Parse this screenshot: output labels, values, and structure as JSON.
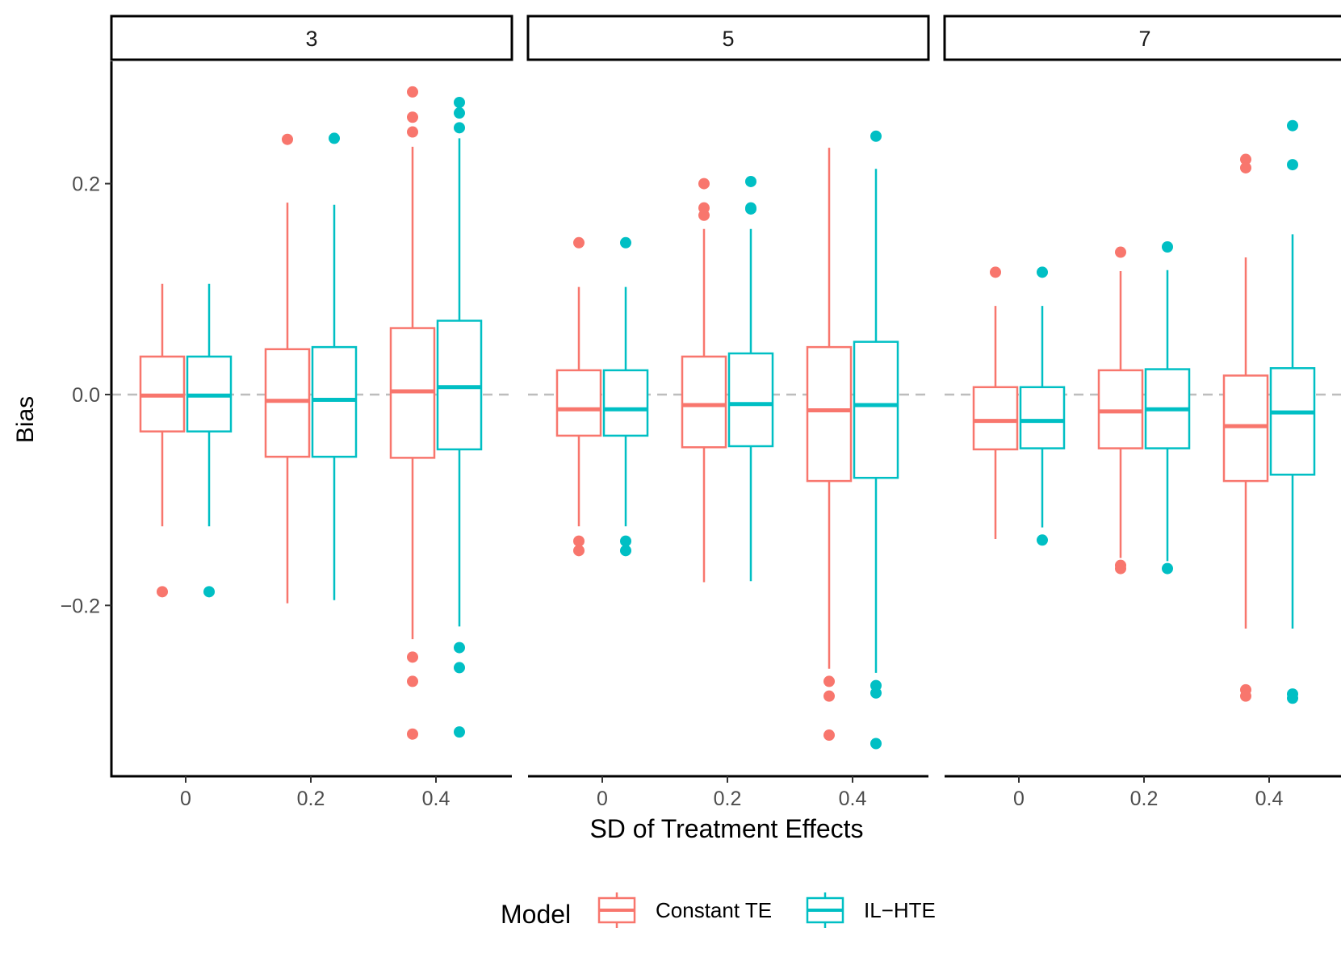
{
  "chart_data": {
    "type": "boxplot",
    "ylabel": "Bias",
    "xlabel": "SD of Treatment Effects",
    "ylim": [
      -0.362,
      0.316
    ],
    "y_ticks": [
      {
        "value": 0.2,
        "label": "0.2"
      },
      {
        "value": 0.0,
        "label": "0.0"
      },
      {
        "value": -0.2,
        "label": "−0.2"
      }
    ],
    "reference_line": 0,
    "categories": [
      "0",
      "0.2",
      "0.4"
    ],
    "legend": {
      "title": "Model",
      "position": "bottom",
      "entries": [
        {
          "name": "Constant TE",
          "color": "#F8766D"
        },
        {
          "name": "IL−HTE",
          "color": "#00BFC4"
        }
      ]
    },
    "panels": [
      {
        "label": "3",
        "groups": [
          {
            "category": "0",
            "series": [
              {
                "name": "Constant TE",
                "whisker_low": -0.125,
                "q1": -0.035,
                "median": -0.001,
                "q3": 0.036,
                "whisker_high": 0.105,
                "outliers": [
                  -0.187
                ]
              },
              {
                "name": "IL−HTE",
                "whisker_low": -0.125,
                "q1": -0.035,
                "median": -0.001,
                "q3": 0.036,
                "whisker_high": 0.105,
                "outliers": [
                  -0.187
                ]
              }
            ]
          },
          {
            "category": "0.2",
            "series": [
              {
                "name": "Constant TE",
                "whisker_low": -0.198,
                "q1": -0.059,
                "median": -0.006,
                "q3": 0.043,
                "whisker_high": 0.182,
                "outliers": [
                  0.242
                ]
              },
              {
                "name": "IL−HTE",
                "whisker_low": -0.195,
                "q1": -0.059,
                "median": -0.005,
                "q3": 0.045,
                "whisker_high": 0.18,
                "outliers": [
                  0.243
                ]
              }
            ]
          },
          {
            "category": "0.4",
            "series": [
              {
                "name": "Constant TE",
                "whisker_low": -0.232,
                "q1": -0.06,
                "median": 0.003,
                "q3": 0.063,
                "whisker_high": 0.235,
                "outliers": [
                  0.287,
                  0.263,
                  0.249,
                  -0.249,
                  -0.272,
                  -0.322
                ]
              },
              {
                "name": "IL−HTE",
                "whisker_low": -0.22,
                "q1": -0.052,
                "median": 0.007,
                "q3": 0.07,
                "whisker_high": 0.243,
                "outliers": [
                  0.277,
                  0.267,
                  0.253,
                  -0.24,
                  -0.259,
                  -0.32
                ]
              }
            ]
          }
        ]
      },
      {
        "label": "5",
        "groups": [
          {
            "category": "0",
            "series": [
              {
                "name": "Constant TE",
                "whisker_low": -0.125,
                "q1": -0.039,
                "median": -0.014,
                "q3": 0.023,
                "whisker_high": 0.102,
                "outliers": [
                  0.144,
                  -0.139,
                  -0.148
                ]
              },
              {
                "name": "IL−HTE",
                "whisker_low": -0.125,
                "q1": -0.039,
                "median": -0.014,
                "q3": 0.023,
                "whisker_high": 0.102,
                "outliers": [
                  0.144,
                  -0.139,
                  -0.148
                ]
              }
            ]
          },
          {
            "category": "0.2",
            "series": [
              {
                "name": "Constant TE",
                "whisker_low": -0.178,
                "q1": -0.05,
                "median": -0.01,
                "q3": 0.036,
                "whisker_high": 0.157,
                "outliers": [
                  0.2,
                  0.177,
                  0.17
                ]
              },
              {
                "name": "IL−HTE",
                "whisker_low": -0.177,
                "q1": -0.049,
                "median": -0.009,
                "q3": 0.039,
                "whisker_high": 0.157,
                "outliers": [
                  0.202,
                  0.177,
                  0.176
                ]
              }
            ]
          },
          {
            "category": "0.4",
            "series": [
              {
                "name": "Constant TE",
                "whisker_low": -0.26,
                "q1": -0.082,
                "median": -0.015,
                "q3": 0.045,
                "whisker_high": 0.234,
                "outliers": [
                  -0.272,
                  -0.286,
                  -0.323
                ]
              },
              {
                "name": "IL−HTE",
                "whisker_low": -0.264,
                "q1": -0.079,
                "median": -0.01,
                "q3": 0.05,
                "whisker_high": 0.214,
                "outliers": [
                  0.245,
                  -0.276,
                  -0.283,
                  -0.331
                ]
              }
            ]
          }
        ]
      },
      {
        "label": "7",
        "groups": [
          {
            "category": "0",
            "series": [
              {
                "name": "Constant TE",
                "whisker_low": -0.137,
                "q1": -0.052,
                "median": -0.025,
                "q3": 0.007,
                "whisker_high": 0.084,
                "outliers": [
                  0.116
                ]
              },
              {
                "name": "IL−HTE",
                "whisker_low": -0.126,
                "q1": -0.051,
                "median": -0.025,
                "q3": 0.007,
                "whisker_high": 0.084,
                "outliers": [
                  0.116,
                  -0.138
                ]
              }
            ]
          },
          {
            "category": "0.2",
            "series": [
              {
                "name": "Constant TE",
                "whisker_low": -0.155,
                "q1": -0.051,
                "median": -0.016,
                "q3": 0.023,
                "whisker_high": 0.117,
                "outliers": [
                  0.135,
                  -0.162,
                  -0.165
                ]
              },
              {
                "name": "IL−HTE",
                "whisker_low": -0.158,
                "q1": -0.051,
                "median": -0.014,
                "q3": 0.024,
                "whisker_high": 0.118,
                "outliers": [
                  0.14,
                  -0.165
                ]
              }
            ]
          },
          {
            "category": "0.4",
            "series": [
              {
                "name": "Constant TE",
                "whisker_low": -0.222,
                "q1": -0.082,
                "median": -0.03,
                "q3": 0.018,
                "whisker_high": 0.13,
                "outliers": [
                  0.223,
                  0.215,
                  -0.28,
                  -0.286
                ]
              },
              {
                "name": "IL−HTE",
                "whisker_low": -0.222,
                "q1": -0.076,
                "median": -0.017,
                "q3": 0.025,
                "whisker_high": 0.152,
                "outliers": [
                  0.255,
                  0.218,
                  -0.284,
                  -0.288
                ]
              }
            ]
          }
        ]
      }
    ]
  }
}
